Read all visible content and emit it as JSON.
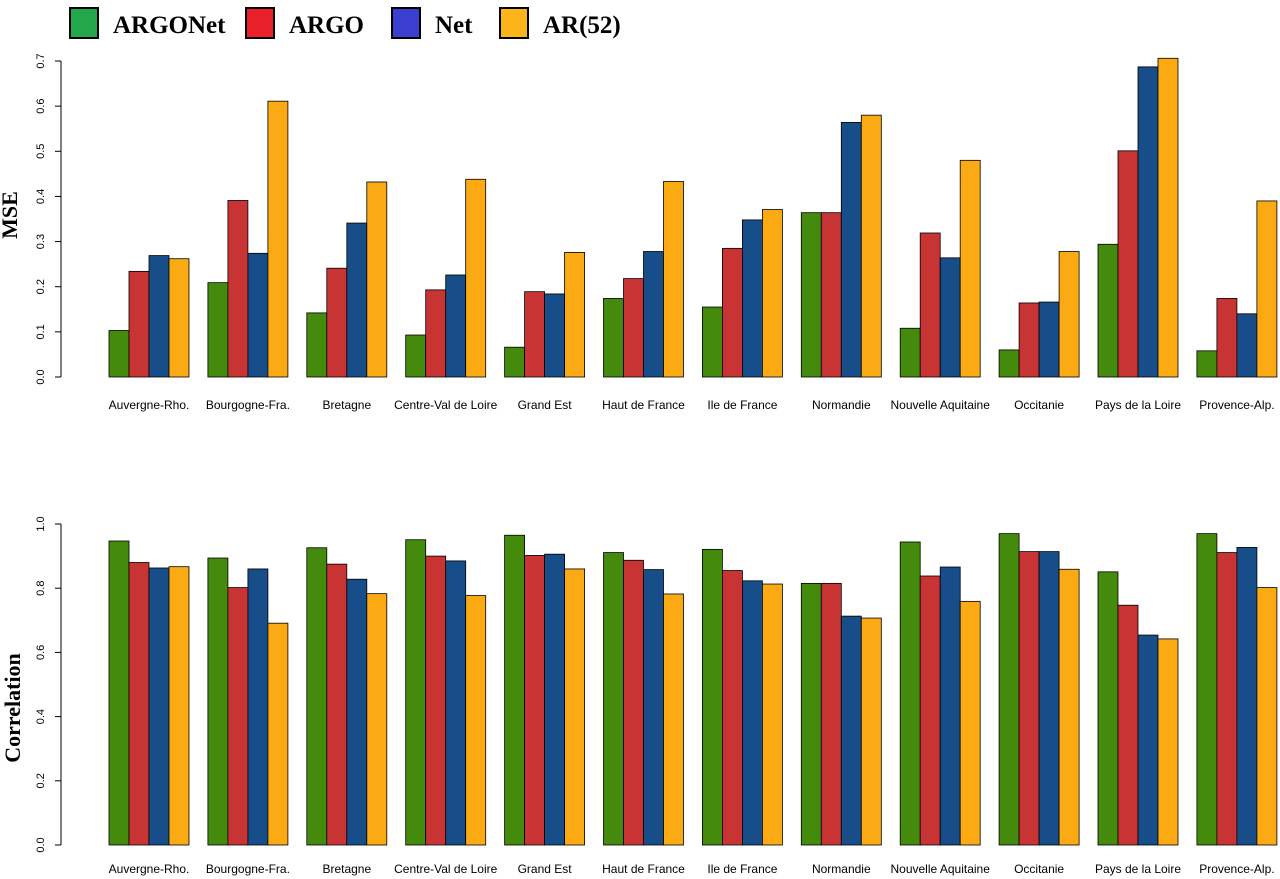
{
  "colors": {
    "legend": {
      "ARGONet": "#22a84a",
      "ARGO": "#e8202a",
      "Net": "#3a3fcf",
      "AR(52)": "#fbb41a"
    },
    "bars": {
      "ARGONet": "#448a0c",
      "ARGO": "#c83434",
      "Net": "#174d88",
      "AR(52)": "#fbaa14"
    }
  },
  "legend": {
    "items": [
      "ARGONet",
      "ARGO",
      "Net",
      "AR(52)"
    ]
  },
  "chart_data": [
    {
      "type": "bar",
      "ylabel": "MSE",
      "ylim": [
        0,
        0.7
      ],
      "yticks": [
        "0.0",
        "0.1",
        "0.2",
        "0.3",
        "0.4",
        "0.5",
        "0.6",
        "0.7"
      ],
      "categories": [
        "Auvergne-Rho.",
        "Bourgogne-Fra.",
        "Bretagne",
        "Centre-Val de Loire",
        "Grand Est",
        "Haut de France",
        "Ile de France",
        "Normandie",
        "Nouvelle Aquitaine",
        "Occitanie",
        "Pays de la Loire",
        "Provence-Alp."
      ],
      "series": [
        {
          "name": "ARGONet",
          "values": [
            0.103,
            0.209,
            0.142,
            0.093,
            0.066,
            0.174,
            0.155,
            0.364,
            0.108,
            0.06,
            0.294,
            0.058
          ]
        },
        {
          "name": "ARGO",
          "values": [
            0.234,
            0.391,
            0.241,
            0.193,
            0.189,
            0.218,
            0.285,
            0.364,
            0.319,
            0.164,
            0.501,
            0.174
          ]
        },
        {
          "name": "Net",
          "values": [
            0.269,
            0.274,
            0.341,
            0.226,
            0.184,
            0.278,
            0.348,
            0.564,
            0.264,
            0.166,
            0.687,
            0.14
          ]
        },
        {
          "name": "AR(52)",
          "values": [
            0.262,
            0.611,
            0.432,
            0.438,
            0.276,
            0.433,
            0.371,
            0.58,
            0.48,
            0.278,
            0.706,
            0.39
          ]
        }
      ]
    },
    {
      "type": "bar",
      "ylabel": "Correlation",
      "ylim": [
        0,
        1.0
      ],
      "yticks": [
        "0.0",
        "0.2",
        "0.4",
        "0.6",
        "0.8",
        "1.0"
      ],
      "categories": [
        "Auvergne-Rho.",
        "Bourgogne-Fra.",
        "Bretagne",
        "Centre-Val de Loire",
        "Grand Est",
        "Haut de France",
        "Ile de France",
        "Normandie",
        "Nouvelle Aquitaine",
        "Occitanie",
        "Pays de la Loire",
        "Provence-Alp."
      ],
      "series": [
        {
          "name": "ARGONet",
          "values": [
            0.947,
            0.894,
            0.926,
            0.951,
            0.965,
            0.911,
            0.921,
            0.815,
            0.944,
            0.97,
            0.851,
            0.97
          ]
        },
        {
          "name": "ARGO",
          "values": [
            0.88,
            0.802,
            0.875,
            0.9,
            0.902,
            0.887,
            0.855,
            0.815,
            0.838,
            0.914,
            0.747,
            0.911
          ]
        },
        {
          "name": "Net",
          "values": [
            0.863,
            0.86,
            0.828,
            0.885,
            0.906,
            0.858,
            0.823,
            0.713,
            0.866,
            0.914,
            0.654,
            0.927
          ]
        },
        {
          "name": "AR(52)",
          "values": [
            0.867,
            0.691,
            0.783,
            0.777,
            0.86,
            0.782,
            0.813,
            0.707,
            0.759,
            0.859,
            0.642,
            0.802
          ]
        }
      ]
    }
  ]
}
